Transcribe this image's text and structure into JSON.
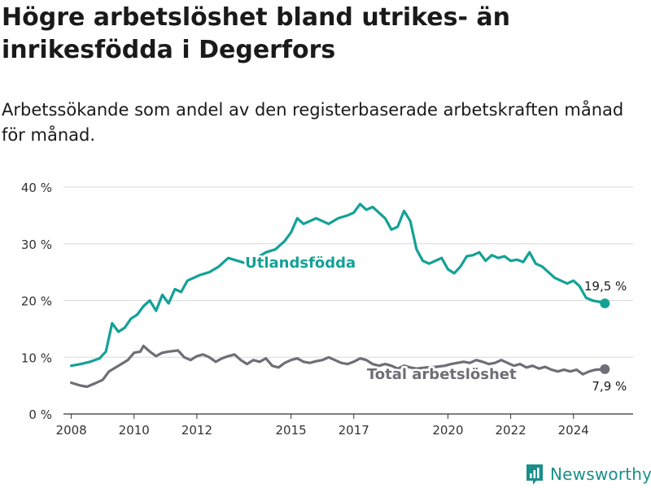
{
  "title": "Högre arbetslöshet bland utrikes- än inrikesfödda i Degerfors",
  "subtitle": "Arbetssökande som andel av den registerbaserade arbetskraften månad för månad.",
  "brand": {
    "name": "Newsworthy",
    "color": "#1a8f8a"
  },
  "chart_data": {
    "type": "line",
    "ylim": [
      0,
      40
    ],
    "xlim": [
      2007.75,
      2025.9
    ],
    "y_ticks": [
      0,
      10,
      20,
      30,
      40
    ],
    "y_tick_labels": [
      "0 %",
      "10 %",
      "20 %",
      "30 %",
      "40 %"
    ],
    "x_ticks": [
      2008,
      2010,
      2012,
      2015,
      2017,
      2020,
      2022,
      2024
    ],
    "x_tick_labels": [
      "2008",
      "2010",
      "2012",
      "2015",
      "2017",
      "2020",
      "2022",
      "2024"
    ],
    "grid": "horizontal",
    "series": [
      {
        "name": "Utlandsfödda",
        "color": "#13a196",
        "end_label": "19,5 %",
        "points": [
          [
            2008.0,
            8.5
          ],
          [
            2008.3,
            8.8
          ],
          [
            2008.6,
            9.2
          ],
          [
            2008.9,
            9.8
          ],
          [
            2009.1,
            11.0
          ],
          [
            2009.3,
            16.0
          ],
          [
            2009.5,
            14.5
          ],
          [
            2009.7,
            15.2
          ],
          [
            2009.9,
            16.8
          ],
          [
            2010.1,
            17.5
          ],
          [
            2010.3,
            19.0
          ],
          [
            2010.5,
            20.0
          ],
          [
            2010.7,
            18.2
          ],
          [
            2010.9,
            21.0
          ],
          [
            2011.1,
            19.5
          ],
          [
            2011.3,
            22.0
          ],
          [
            2011.5,
            21.5
          ],
          [
            2011.7,
            23.5
          ],
          [
            2011.9,
            24.0
          ],
          [
            2012.1,
            24.5
          ],
          [
            2012.4,
            25.0
          ],
          [
            2012.7,
            26.0
          ],
          [
            2013.0,
            27.5
          ],
          [
            2013.3,
            27.0
          ],
          [
            2013.6,
            26.5
          ],
          [
            2013.9,
            27.5
          ],
          [
            2014.2,
            28.5
          ],
          [
            2014.5,
            29.0
          ],
          [
            2014.8,
            30.5
          ],
          [
            2015.0,
            32.0
          ],
          [
            2015.2,
            34.5
          ],
          [
            2015.4,
            33.5
          ],
          [
            2015.6,
            34.0
          ],
          [
            2015.8,
            34.5
          ],
          [
            2016.0,
            34.0
          ],
          [
            2016.2,
            33.5
          ],
          [
            2016.5,
            34.5
          ],
          [
            2016.8,
            35.0
          ],
          [
            2017.0,
            35.5
          ],
          [
            2017.2,
            37.0
          ],
          [
            2017.4,
            36.0
          ],
          [
            2017.6,
            36.5
          ],
          [
            2017.8,
            35.5
          ],
          [
            2018.0,
            34.5
          ],
          [
            2018.2,
            32.5
          ],
          [
            2018.4,
            33.0
          ],
          [
            2018.6,
            35.8
          ],
          [
            2018.8,
            34.0
          ],
          [
            2019.0,
            29.0
          ],
          [
            2019.2,
            27.0
          ],
          [
            2019.4,
            26.5
          ],
          [
            2019.6,
            27.0
          ],
          [
            2019.8,
            27.5
          ],
          [
            2020.0,
            25.5
          ],
          [
            2020.2,
            24.8
          ],
          [
            2020.4,
            26.0
          ],
          [
            2020.6,
            27.8
          ],
          [
            2020.8,
            28.0
          ],
          [
            2021.0,
            28.5
          ],
          [
            2021.2,
            27.0
          ],
          [
            2021.4,
            28.0
          ],
          [
            2021.6,
            27.5
          ],
          [
            2021.8,
            27.8
          ],
          [
            2022.0,
            27.0
          ],
          [
            2022.2,
            27.2
          ],
          [
            2022.4,
            26.8
          ],
          [
            2022.6,
            28.5
          ],
          [
            2022.8,
            26.5
          ],
          [
            2023.0,
            26.0
          ],
          [
            2023.2,
            25.0
          ],
          [
            2023.4,
            24.0
          ],
          [
            2023.6,
            23.5
          ],
          [
            2023.8,
            23.0
          ],
          [
            2024.0,
            23.5
          ],
          [
            2024.2,
            22.5
          ],
          [
            2024.4,
            20.5
          ],
          [
            2024.6,
            20.0
          ],
          [
            2024.8,
            19.8
          ],
          [
            2025.0,
            19.5
          ]
        ]
      },
      {
        "name": "Total arbetslöshet",
        "color": "#6f6e76",
        "end_label": "7,9 %",
        "points": [
          [
            2008.0,
            5.5
          ],
          [
            2008.3,
            5.0
          ],
          [
            2008.5,
            4.8
          ],
          [
            2008.8,
            5.5
          ],
          [
            2009.0,
            6.0
          ],
          [
            2009.2,
            7.5
          ],
          [
            2009.5,
            8.5
          ],
          [
            2009.8,
            9.5
          ],
          [
            2010.0,
            10.8
          ],
          [
            2010.2,
            11.0
          ],
          [
            2010.3,
            12.0
          ],
          [
            2010.5,
            11.0
          ],
          [
            2010.7,
            10.2
          ],
          [
            2010.9,
            10.8
          ],
          [
            2011.1,
            11.0
          ],
          [
            2011.4,
            11.2
          ],
          [
            2011.6,
            10.0
          ],
          [
            2011.8,
            9.5
          ],
          [
            2012.0,
            10.2
          ],
          [
            2012.2,
            10.5
          ],
          [
            2012.4,
            10.0
          ],
          [
            2012.6,
            9.2
          ],
          [
            2012.8,
            9.8
          ],
          [
            2013.0,
            10.2
          ],
          [
            2013.2,
            10.5
          ],
          [
            2013.4,
            9.5
          ],
          [
            2013.6,
            8.8
          ],
          [
            2013.8,
            9.5
          ],
          [
            2014.0,
            9.2
          ],
          [
            2014.2,
            9.8
          ],
          [
            2014.4,
            8.5
          ],
          [
            2014.6,
            8.2
          ],
          [
            2014.8,
            9.0
          ],
          [
            2015.0,
            9.5
          ],
          [
            2015.2,
            9.8
          ],
          [
            2015.4,
            9.2
          ],
          [
            2015.6,
            9.0
          ],
          [
            2015.8,
            9.3
          ],
          [
            2016.0,
            9.5
          ],
          [
            2016.2,
            10.0
          ],
          [
            2016.4,
            9.5
          ],
          [
            2016.6,
            9.0
          ],
          [
            2016.8,
            8.8
          ],
          [
            2017.0,
            9.2
          ],
          [
            2017.2,
            9.8
          ],
          [
            2017.4,
            9.5
          ],
          [
            2017.6,
            8.8
          ],
          [
            2017.8,
            8.5
          ],
          [
            2018.0,
            8.8
          ],
          [
            2018.2,
            8.5
          ],
          [
            2018.4,
            8.0
          ],
          [
            2018.6,
            8.5
          ],
          [
            2018.8,
            8.2
          ],
          [
            2019.0,
            8.0
          ],
          [
            2019.3,
            8.2
          ],
          [
            2019.6,
            8.3
          ],
          [
            2019.9,
            8.5
          ],
          [
            2020.1,
            8.8
          ],
          [
            2020.3,
            9.0
          ],
          [
            2020.5,
            9.2
          ],
          [
            2020.7,
            9.0
          ],
          [
            2020.9,
            9.5
          ],
          [
            2021.1,
            9.2
          ],
          [
            2021.3,
            8.8
          ],
          [
            2021.5,
            9.0
          ],
          [
            2021.7,
            9.5
          ],
          [
            2021.9,
            9.0
          ],
          [
            2022.1,
            8.5
          ],
          [
            2022.3,
            8.8
          ],
          [
            2022.5,
            8.2
          ],
          [
            2022.7,
            8.5
          ],
          [
            2022.9,
            8.0
          ],
          [
            2023.1,
            8.3
          ],
          [
            2023.3,
            7.8
          ],
          [
            2023.5,
            7.5
          ],
          [
            2023.7,
            7.8
          ],
          [
            2023.9,
            7.5
          ],
          [
            2024.1,
            7.8
          ],
          [
            2024.3,
            7.0
          ],
          [
            2024.5,
            7.5
          ],
          [
            2024.7,
            7.8
          ],
          [
            2025.0,
            7.9
          ]
        ]
      }
    ]
  }
}
